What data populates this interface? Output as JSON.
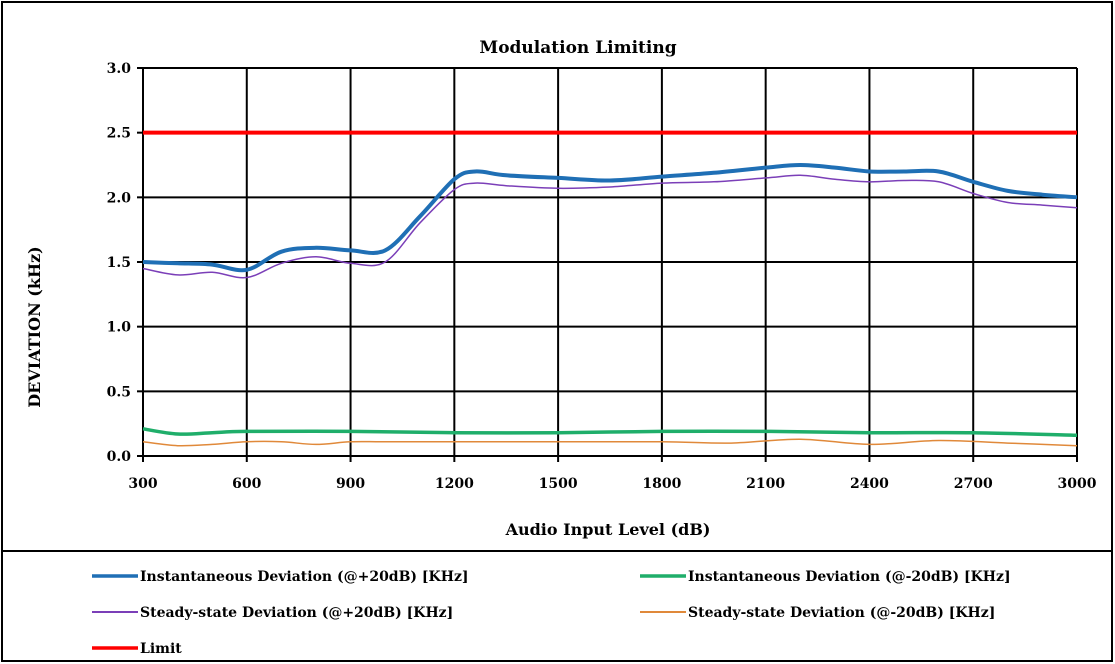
{
  "chart_data": {
    "type": "line",
    "title": "Modulation Limiting",
    "xlabel": "Audio Input Level (dB)",
    "ylabel": "DEVIATION (kHz)",
    "xlim": [
      300,
      3000
    ],
    "ylim": [
      0.0,
      3.0
    ],
    "xticks": [
      300,
      600,
      900,
      1200,
      1500,
      1800,
      2100,
      2400,
      2700,
      3000
    ],
    "yticks": [
      "0.0",
      "0.5",
      "1.0",
      "1.5",
      "2.0",
      "2.5",
      "3.0"
    ],
    "grid": true,
    "legend_position": "bottom",
    "series": [
      {
        "name": "Instantaneous Deviation (@+20dB) [KHz]",
        "color": "#1f6fb5",
        "x": [
          300,
          400,
          500,
          600,
          700,
          800,
          900,
          1000,
          1100,
          1200,
          1260,
          1350,
          1500,
          1650,
          1800,
          1950,
          2100,
          2200,
          2300,
          2400,
          2500,
          2600,
          2700,
          2800,
          2900,
          3000
        ],
        "y": [
          1.5,
          1.49,
          1.48,
          1.44,
          1.58,
          1.61,
          1.59,
          1.59,
          1.85,
          2.14,
          2.2,
          2.17,
          2.15,
          2.13,
          2.16,
          2.19,
          2.23,
          2.25,
          2.23,
          2.2,
          2.2,
          2.2,
          2.12,
          2.05,
          2.02,
          2.0
        ]
      },
      {
        "name": "Instantaneous Deviation (@-20dB) [KHz]",
        "color": "#1fae6a",
        "x": [
          300,
          400,
          500,
          600,
          900,
          1200,
          1500,
          1800,
          2100,
          2400,
          2700,
          3000
        ],
        "y": [
          0.21,
          0.17,
          0.18,
          0.19,
          0.19,
          0.18,
          0.18,
          0.19,
          0.19,
          0.18,
          0.18,
          0.16
        ]
      },
      {
        "name": "Steady-state Deviation (@+20dB) [KHz]",
        "color": "#7b3fb8",
        "x": [
          300,
          400,
          500,
          600,
          700,
          800,
          900,
          1000,
          1100,
          1200,
          1260,
          1350,
          1500,
          1650,
          1800,
          1950,
          2100,
          2200,
          2300,
          2400,
          2500,
          2600,
          2700,
          2800,
          2900,
          3000
        ],
        "y": [
          1.45,
          1.4,
          1.42,
          1.38,
          1.49,
          1.54,
          1.49,
          1.5,
          1.8,
          2.06,
          2.11,
          2.09,
          2.07,
          2.08,
          2.11,
          2.12,
          2.15,
          2.17,
          2.14,
          2.12,
          2.13,
          2.12,
          2.03,
          1.96,
          1.94,
          1.92
        ]
      },
      {
        "name": "Steady-state Deviation (@-20dB) [KHz]",
        "color": "#e0893a",
        "x": [
          300,
          400,
          500,
          600,
          700,
          800,
          900,
          1000,
          1200,
          1500,
          1800,
          2000,
          2200,
          2400,
          2600,
          2800,
          3000
        ],
        "y": [
          0.11,
          0.08,
          0.09,
          0.11,
          0.11,
          0.09,
          0.11,
          0.11,
          0.11,
          0.11,
          0.11,
          0.1,
          0.13,
          0.09,
          0.12,
          0.1,
          0.08
        ]
      },
      {
        "name": "Limit",
        "color": "#ff0000",
        "x": [
          300,
          3000
        ],
        "y": [
          2.5,
          2.5
        ]
      }
    ]
  }
}
